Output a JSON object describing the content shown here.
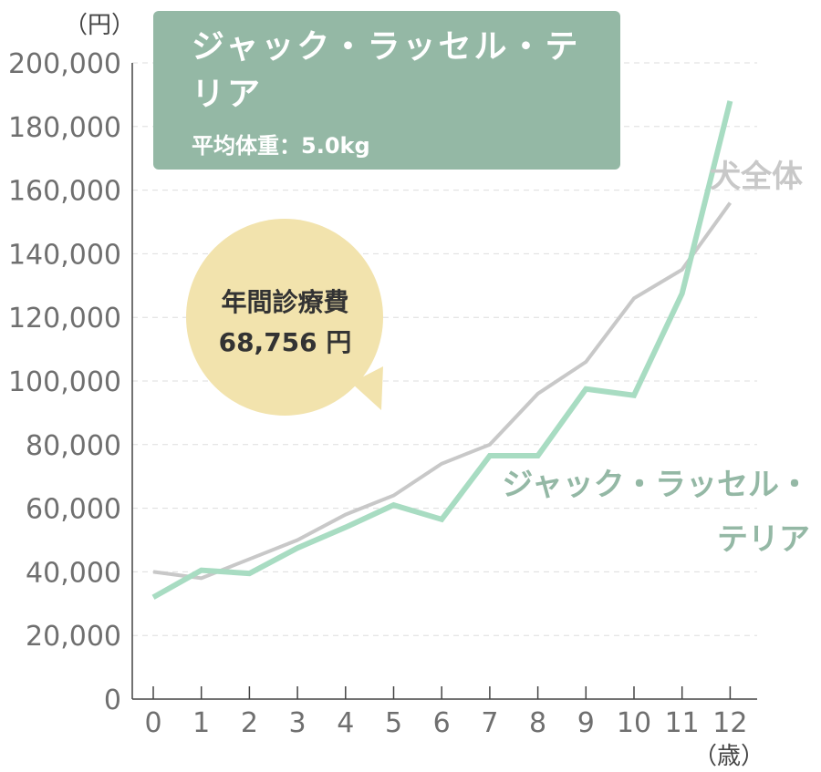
{
  "chart_data": {
    "type": "line",
    "title": "ジャック・ラッセル・テリア",
    "subtitle": "平均体重：5.0kg",
    "callout": {
      "label": "年間診療費",
      "value": "68,756 円"
    },
    "y_unit": "（円）",
    "x_unit": "（歳）",
    "x": [
      0,
      1,
      2,
      3,
      4,
      5,
      6,
      7,
      8,
      9,
      10,
      11,
      12
    ],
    "y_ticks": [
      "0",
      "20,000",
      "40,000",
      "60,000",
      "80,000",
      "100,000",
      "120,000",
      "140,000",
      "160,000",
      "180,000",
      "200,000"
    ],
    "ylim": [
      0,
      200000
    ],
    "grid": true,
    "series": [
      {
        "name": "犬全体",
        "color": "#c8c8c8",
        "points": [
          [
            0,
            40000
          ],
          [
            1,
            38000
          ],
          [
            2,
            44000
          ],
          [
            3,
            50000
          ],
          [
            4,
            58000
          ],
          [
            5,
            64000
          ],
          [
            6,
            74000
          ],
          [
            7,
            80000
          ],
          [
            8,
            96000
          ],
          [
            9,
            106000
          ],
          [
            10,
            126000
          ],
          [
            11,
            135000
          ],
          [
            12,
            156000
          ]
        ]
      },
      {
        "name": "ジャック・ラッセル・テリア",
        "color": "#a8dcc2",
        "points": [
          [
            0,
            32000
          ],
          [
            1,
            40500
          ],
          [
            2,
            39500
          ],
          [
            3,
            47500
          ],
          [
            4,
            54000
          ],
          [
            5,
            61000
          ],
          [
            6,
            56500
          ],
          [
            7,
            76500
          ],
          [
            8,
            76500
          ],
          [
            9,
            97500
          ],
          [
            10,
            95500
          ],
          [
            11,
            127500
          ],
          [
            12,
            188000
          ]
        ]
      }
    ]
  }
}
